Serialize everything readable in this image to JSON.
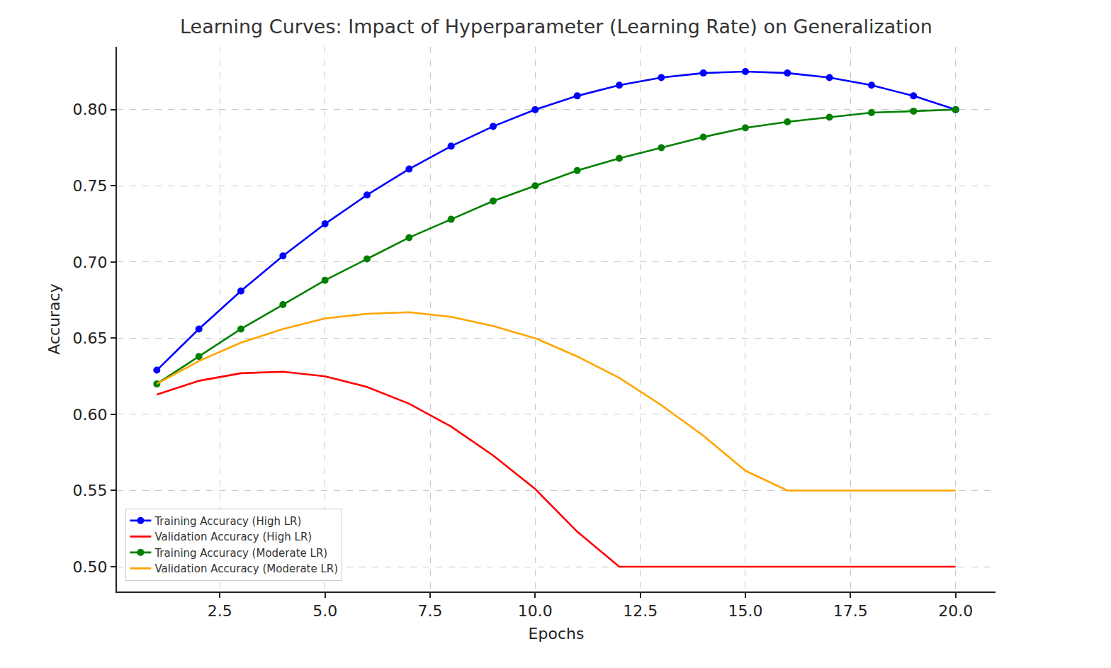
{
  "chart_data": {
    "type": "line",
    "title": "Learning Curves: Impact of Hyperparameter (Learning Rate) on Generalization",
    "x_label": "Epochs",
    "y_label": "Accuracy",
    "x": [
      1,
      2,
      3,
      4,
      5,
      6,
      7,
      8,
      9,
      10,
      11,
      12,
      13,
      14,
      15,
      16,
      17,
      18,
      19,
      20
    ],
    "series": [
      {
        "name": "Training Accuracy (High LR)",
        "color": "#0000ff",
        "marker": "circle",
        "line_style": "solid",
        "values": [
          0.629,
          0.656,
          0.681,
          0.704,
          0.725,
          0.744,
          0.761,
          0.776,
          0.789,
          0.8,
          0.809,
          0.816,
          0.821,
          0.824,
          0.825,
          0.824,
          0.821,
          0.816,
          0.809,
          0.8
        ]
      },
      {
        "name": "Validation Accuracy (High LR)",
        "color": "#ff0000",
        "line_style": "solid",
        "values": [
          0.613,
          0.622,
          0.627,
          0.628,
          0.625,
          0.618,
          0.607,
          0.592,
          0.573,
          0.551,
          0.523,
          0.5,
          0.5,
          0.5,
          0.5,
          0.5,
          0.5,
          0.5,
          0.5,
          0.5
        ]
      },
      {
        "name": "Training Accuracy (Moderate LR)",
        "color": "#008000",
        "marker": "circle",
        "line_style": "solid",
        "values": [
          0.62,
          0.638,
          0.656,
          0.672,
          0.688,
          0.702,
          0.716,
          0.728,
          0.74,
          0.75,
          0.76,
          0.768,
          0.775,
          0.782,
          0.788,
          0.792,
          0.795,
          0.798,
          0.799,
          0.8
        ]
      },
      {
        "name": "Validation Accuracy (Moderate LR)",
        "color": "#ffa500",
        "line_style": "solid",
        "values": [
          0.62,
          0.635,
          0.647,
          0.656,
          0.663,
          0.666,
          0.667,
          0.664,
          0.658,
          0.65,
          0.638,
          0.624,
          0.606,
          0.586,
          0.563,
          0.55,
          0.55,
          0.55,
          0.55,
          0.55
        ]
      }
    ],
    "xlim": [
      0.05,
      20.95
    ],
    "xticks": [
      2.5,
      {
        "value": 5,
        "label": "5.0"
      },
      7.5,
      {
        "value": 10,
        "label": "10.0"
      },
      12.5,
      {
        "value": 15,
        "label": "15.0"
      },
      17.5,
      {
        "value": 20,
        "label": "20.0"
      }
    ],
    "ylim": [
      0.48375,
      0.84125
    ],
    "yticks": [
      {
        "value": 0.5,
        "label": "0.50"
      },
      0.55,
      {
        "value": 0.6,
        "label": "0.60"
      },
      0.65,
      {
        "value": 0.7,
        "label": "0.70"
      },
      0.75,
      {
        "value": 0.8,
        "label": "0.80"
      }
    ],
    "grid": true,
    "legend": "lower left"
  }
}
